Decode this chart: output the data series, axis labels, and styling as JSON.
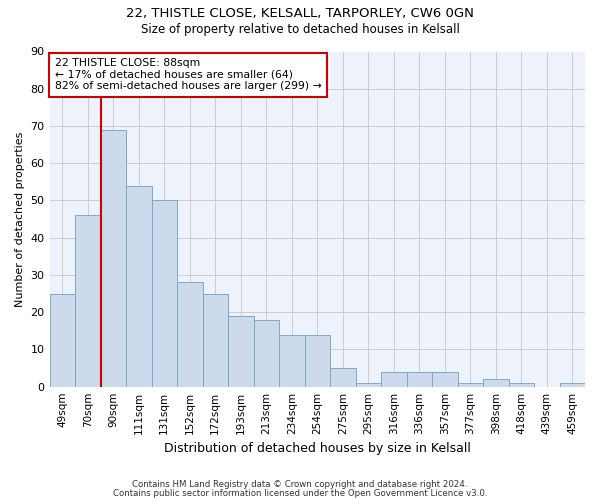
{
  "title1": "22, THISTLE CLOSE, KELSALL, TARPORLEY, CW6 0GN",
  "title2": "Size of property relative to detached houses in Kelsall",
  "xlabel": "Distribution of detached houses by size in Kelsall",
  "ylabel": "Number of detached properties",
  "categories": [
    "49sqm",
    "70sqm",
    "90sqm",
    "111sqm",
    "131sqm",
    "152sqm",
    "172sqm",
    "193sqm",
    "213sqm",
    "234sqm",
    "254sqm",
    "275sqm",
    "295sqm",
    "316sqm",
    "336sqm",
    "357sqm",
    "377sqm",
    "398sqm",
    "418sqm",
    "439sqm",
    "459sqm"
  ],
  "values": [
    25,
    46,
    69,
    54,
    50,
    28,
    25,
    19,
    18,
    14,
    14,
    5,
    1,
    4,
    4,
    4,
    1,
    2,
    1,
    0,
    1
  ],
  "bar_color": "#ccdaeb",
  "bar_edge_color": "#7aaac8",
  "grid_color": "#cccccc",
  "background_color": "#ffffff",
  "plot_bg_color": "#eef2fa",
  "red_line_index": 2,
  "red_line_color": "#cc0000",
  "annotation_text": "22 THISTLE CLOSE: 88sqm\n← 17% of detached houses are smaller (64)\n82% of semi-detached houses are larger (299) →",
  "annotation_box_color": "#ffffff",
  "annotation_box_edge_color": "#cc0000",
  "ylim": [
    0,
    90
  ],
  "yticks": [
    0,
    10,
    20,
    30,
    40,
    50,
    60,
    70,
    80,
    90
  ],
  "footer1": "Contains HM Land Registry data © Crown copyright and database right 2024.",
  "footer2": "Contains public sector information licensed under the Open Government Licence v3.0."
}
